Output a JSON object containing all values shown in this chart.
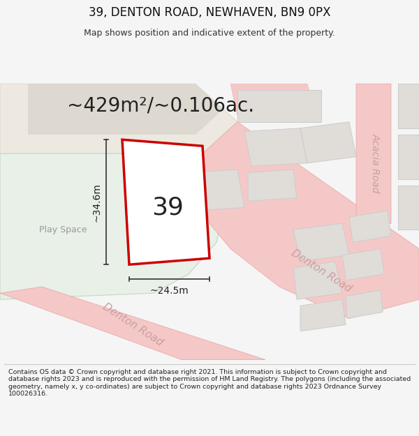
{
  "title": "39, DENTON ROAD, NEWHAVEN, BN9 0PX",
  "subtitle": "Map shows position and indicative extent of the property.",
  "area_text": "~429m²/~0.106ac.",
  "property_number": "39",
  "dim_height": "~34.6m",
  "dim_width": "~24.5m",
  "footer": "Contains OS data © Crown copyright and database right 2021. This information is subject to Crown copyright and database rights 2023 and is reproduced with the permission of HM Land Registry. The polygons (including the associated geometry, namely x, y co-ordinates) are subject to Crown copyright and database rights 2023 Ordnance Survey 100026316.",
  "bg_color": "#f5f5f5",
  "map_bg": "#f8f8f8",
  "road_color": "#f5c8c8",
  "road_edge_color": "#e8a0a0",
  "road_line_color": "#e0a0a0",
  "building_color": "#e0dcd8",
  "building_edge_color": "#cccccc",
  "play_space_color": "#e8f0e8",
  "play_space_edge": "#c0d8c0",
  "property_edge_color": "#cc0000",
  "property_fill": "#ffffff",
  "text_color": "#222222",
  "dim_line_color": "#333333",
  "road_label_color": "#c8a0a0",
  "acacia_label_color": "#c8a0a0",
  "footer_color": "#222222",
  "title_color": "#111111",
  "subtitle_color": "#333333",
  "play_label_color": "#999999"
}
